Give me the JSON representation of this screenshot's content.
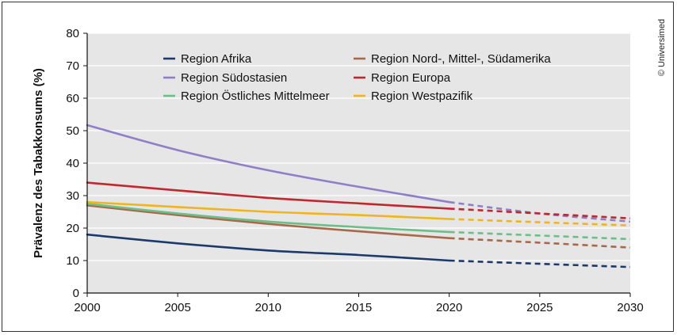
{
  "credit": "© Universimed",
  "chart_data": {
    "type": "line",
    "ylabel": "Prävalenz des Tabakkonsums (%)",
    "xlabel": "",
    "xlim": [
      2000,
      2030
    ],
    "ylim": [
      0,
      80
    ],
    "x_ticks": [
      2000,
      2005,
      2010,
      2015,
      2020,
      2025,
      2030
    ],
    "y_ticks": [
      0,
      10,
      20,
      30,
      40,
      50,
      60,
      70,
      80
    ],
    "x_tick_labels": [
      "2000",
      "2005",
      "2010",
      "2015",
      "2020",
      "2025",
      "2030"
    ],
    "y_tick_labels": [
      "0",
      "10",
      "20",
      "30",
      "40",
      "50",
      "60",
      "70",
      "80"
    ],
    "grid": "horizontal",
    "legend_position": "top",
    "projection_start": 2020,
    "note": "",
    "series": [
      {
        "name": "Region Afrika",
        "color": "#1b3a6b",
        "x": [
          2000,
          2005,
          2010,
          2015,
          2020,
          2025,
          2030
        ],
        "values": [
          18,
          15.3,
          13.1,
          11.7,
          10,
          9,
          8
        ]
      },
      {
        "name": "Region Nord-, Mittel-, Südamerika",
        "color": "#a8694a",
        "x": [
          2000,
          2005,
          2010,
          2015,
          2020,
          2025,
          2030
        ],
        "values": [
          27,
          24,
          21.3,
          19,
          16.9,
          15.5,
          14
        ]
      },
      {
        "name": "Region Südostasien",
        "color": "#8f7fc8",
        "x": [
          2000,
          2005,
          2010,
          2015,
          2020,
          2025,
          2030
        ],
        "values": [
          51.7,
          44,
          37.8,
          32.7,
          28,
          24.5,
          22
        ]
      },
      {
        "name": "Region Europa",
        "color": "#c0282e",
        "x": [
          2000,
          2005,
          2010,
          2015,
          2020,
          2025,
          2030
        ],
        "values": [
          34,
          31.6,
          29.3,
          27.6,
          26,
          24.5,
          23
        ]
      },
      {
        "name": "Region Östliches Mittelmeer",
        "color": "#6cbf86",
        "x": [
          2000,
          2005,
          2010,
          2015,
          2020,
          2025,
          2030
        ],
        "values": [
          27.5,
          24.5,
          22,
          20.3,
          18.8,
          17.7,
          16.6
        ]
      },
      {
        "name": "Region Westpazifik",
        "color": "#f2b41c",
        "x": [
          2000,
          2005,
          2010,
          2015,
          2020,
          2025,
          2030
        ],
        "values": [
          28,
          26.5,
          25,
          24,
          22.8,
          21.8,
          20.8
        ]
      }
    ]
  }
}
